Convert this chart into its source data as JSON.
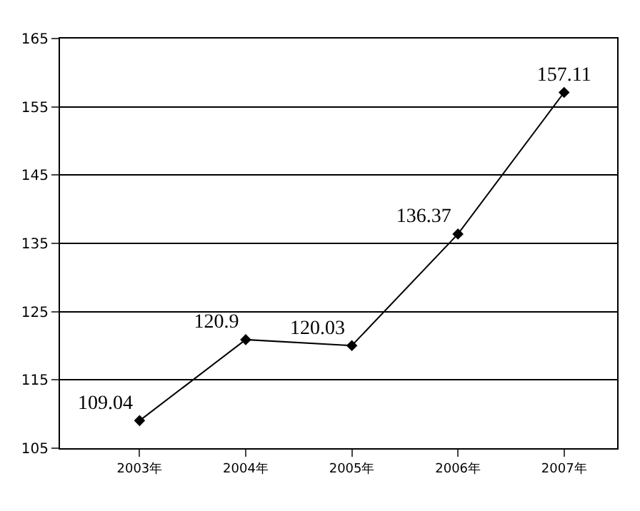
{
  "chart_data": {
    "type": "line",
    "categories": [
      "2003年",
      "2004年",
      "2005年",
      "2006年",
      "2007年"
    ],
    "series": [
      {
        "color": "#000000",
        "values": [
          109.04,
          120.9,
          120.03,
          136.37,
          157.11
        ]
      }
    ],
    "ylim": [
      105,
      165
    ],
    "yticks": [
      105,
      115,
      125,
      135,
      145,
      155,
      165
    ],
    "grid": "y",
    "legend": false,
    "marker": "diamond",
    "line_style": "solid",
    "data_labels": true
  }
}
